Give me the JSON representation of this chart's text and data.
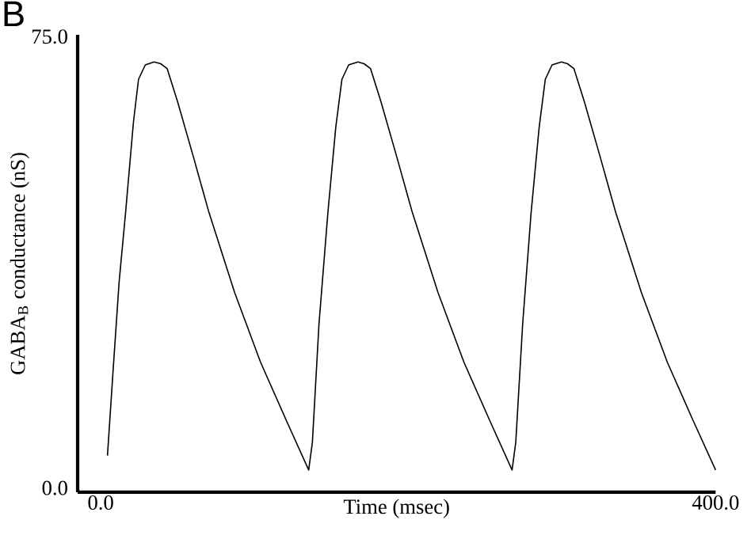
{
  "chart_data": {
    "type": "line",
    "title": "B",
    "xlabel": "Time (msec)",
    "ylabel": "GABA$_{B}$ conductance (nS)",
    "xlim": [
      -15,
      400
    ],
    "ylim": [
      0,
      76
    ],
    "xticks": [
      {
        "value": 0,
        "label": "0.0"
      },
      {
        "value": 400,
        "label": "400.0"
      }
    ],
    "yticks": [
      {
        "value": 0,
        "label": "0.0"
      },
      {
        "value": 75,
        "label": "75.0"
      }
    ],
    "grid": false,
    "marker": "none",
    "line_style": "solid",
    "series": [
      {
        "color": "#000000",
        "x": [
          4.4,
          8,
          12,
          16.2,
          21.3,
          24.6,
          29,
          34.7,
          39,
          43.2,
          49.9,
          60,
          70.4,
          87.1,
          104,
          120.8,
          135.3,
          137.7,
          142,
          147.8,
          152.9,
          156.9,
          161.3,
          167.4,
          171.3,
          175.5,
          182.2,
          192.3,
          202.7,
          219.4,
          236.3,
          253.1,
          267.6,
          270,
          274.5,
          280,
          285.2,
          289.2,
          293.6,
          299.7,
          303.6,
          307.8,
          314.5,
          324.6,
          335,
          351.7,
          368.6,
          385.4,
          400
        ],
        "values": [
          6.1,
          20,
          35,
          46.5,
          61.5,
          68.6,
          71,
          71.5,
          71.2,
          70.4,
          65,
          56,
          46.5,
          33.2,
          21.6,
          11.9,
          3.7,
          8.3,
          28,
          46.5,
          60.6,
          68.6,
          71,
          71.5,
          71.2,
          70.4,
          65,
          56,
          46.5,
          33.2,
          21.6,
          11.9,
          3.7,
          8.3,
          28,
          46.5,
          60.6,
          68.6,
          71,
          71.5,
          71.2,
          70.4,
          65,
          56,
          46.5,
          33.2,
          21.6,
          11.9,
          3.7
        ]
      }
    ]
  }
}
